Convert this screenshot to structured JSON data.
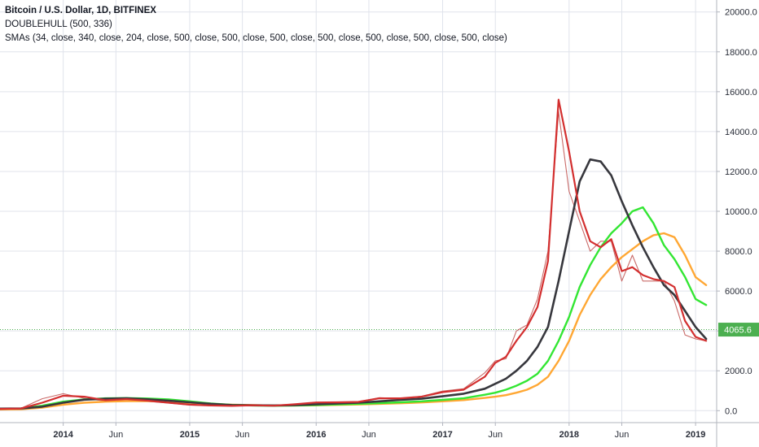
{
  "legend": {
    "symbol": "Bitcoin / U.S. Dollar, 1D, BITFINEX",
    "study1": "DOUBLEHULL (500, 336)",
    "study2": "SMAs (34, close, 340, close, 204, close, 500, close, 500, close, 500, close, 500, close, 500, close, 500, close, 500, close)"
  },
  "price_label": "4065.6",
  "colors": {
    "price": "#c0504d",
    "fast": "#d32f2f",
    "slow_dark": "#37373d",
    "green": "#33e633",
    "orange": "#ffa733",
    "price_tag": "#4caf50",
    "grid": "#e0e3eb"
  },
  "chart_data": {
    "type": "line",
    "title": "Bitcoin / U.S. Dollar, 1D, BITFINEX",
    "xlabel": "",
    "ylabel": "",
    "x_ticks": [
      "2014",
      "Jun",
      "2015",
      "Jun",
      "2016",
      "Jun",
      "2017",
      "Jun",
      "2018",
      "Jun",
      "2019"
    ],
    "y_ticks": [
      "0.0",
      "2000.0",
      "4000.0",
      "6000.0",
      "8000.0",
      "10000.0",
      "12000.0",
      "14000.0",
      "16000.0",
      "18000.0",
      "20000.0"
    ],
    "ylim": [
      -600,
      20600
    ],
    "xlim": [
      "2013-07",
      "2019-03"
    ],
    "grid": true,
    "last_price": 4065.6,
    "x": [
      "2013-07",
      "2013-09",
      "2013-11",
      "2014-01",
      "2014-03",
      "2014-05",
      "2014-07",
      "2014-09",
      "2014-11",
      "2015-01",
      "2015-03",
      "2015-05",
      "2015-07",
      "2015-09",
      "2015-11",
      "2016-01",
      "2016-03",
      "2016-05",
      "2016-07",
      "2016-09",
      "2016-11",
      "2017-01",
      "2017-03",
      "2017-05",
      "2017-06",
      "2017-07",
      "2017-08",
      "2017-09",
      "2017-10",
      "2017-11",
      "2017-12",
      "2018-01",
      "2018-02",
      "2018-03",
      "2018-04",
      "2018-05",
      "2018-06",
      "2018-07",
      "2018-08",
      "2018-09",
      "2018-10",
      "2018-11",
      "2018-12",
      "2019-01",
      "2019-02"
    ],
    "series": [
      {
        "values": [
          90,
          120,
          600,
          850,
          620,
          480,
          620,
          470,
          380,
          280,
          260,
          240,
          280,
          240,
          330,
          420,
          420,
          450,
          650,
          610,
          720,
          980,
          1100,
          1900,
          2500,
          2600,
          4000,
          4300,
          5600,
          8000,
          15000,
          11000,
          9500,
          8000,
          8500,
          8500,
          6500,
          7800,
          6500,
          6500,
          6500,
          5500,
          3800,
          3600,
          3500
        ]
      },
      {
        "values": [
          90,
          110,
          400,
          750,
          700,
          520,
          580,
          500,
          400,
          300,
          260,
          240,
          270,
          250,
          320,
          410,
          420,
          440,
          620,
          620,
          700,
          930,
          1050,
          1700,
          2400,
          2700,
          3500,
          4200,
          5200,
          7500,
          15600,
          13000,
          10000,
          8500,
          8200,
          8600,
          7000,
          7200,
          6800,
          6600,
          6500,
          6200,
          4500,
          3700,
          3500
        ]
      },
      {
        "values": [
          100,
          110,
          200,
          400,
          550,
          600,
          620,
          570,
          500,
          420,
          340,
          280,
          270,
          260,
          280,
          320,
          360,
          400,
          470,
          540,
          600,
          720,
          850,
          1100,
          1350,
          1600,
          2000,
          2500,
          3200,
          4200,
          6500,
          9000,
          11500,
          12600,
          12500,
          11800,
          10500,
          9300,
          8200,
          7200,
          6300,
          5800,
          5000,
          4200,
          3600
        ]
      },
      {
        "values": [
          100,
          110,
          250,
          450,
          560,
          620,
          630,
          610,
          560,
          470,
          360,
          290,
          260,
          250,
          260,
          280,
          310,
          340,
          380,
          420,
          470,
          540,
          620,
          800,
          900,
          1050,
          1250,
          1500,
          1850,
          2500,
          3500,
          4700,
          6200,
          7300,
          8200,
          8900,
          9400,
          10000,
          10200,
          9400,
          8300,
          7600,
          6700,
          5600,
          5300
        ]
      },
      {
        "values": [
          60,
          70,
          150,
          300,
          400,
          450,
          480,
          480,
          460,
          400,
          340,
          300,
          280,
          260,
          260,
          270,
          290,
          310,
          340,
          370,
          410,
          470,
          530,
          640,
          700,
          780,
          900,
          1050,
          1300,
          1700,
          2500,
          3500,
          4800,
          5800,
          6600,
          7200,
          7700,
          8100,
          8500,
          8800,
          8900,
          8700,
          7800,
          6700,
          6300
        ]
      }
    ]
  }
}
